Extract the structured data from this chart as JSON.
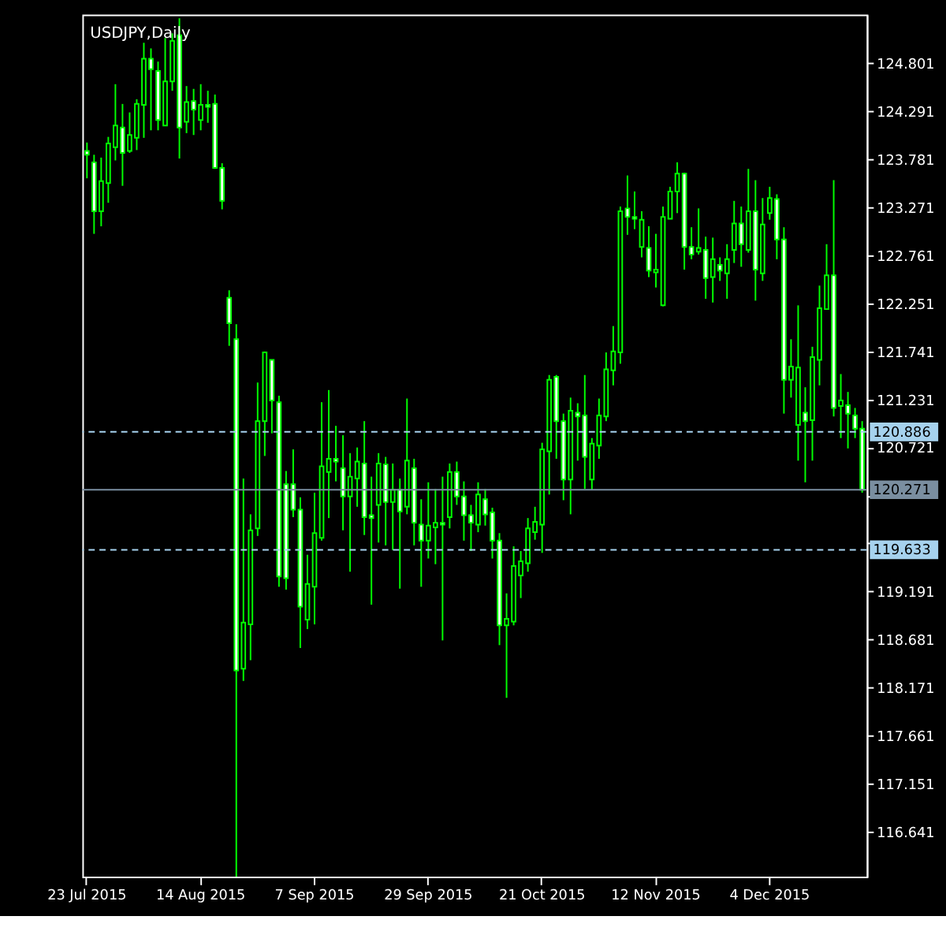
{
  "chart_data": {
    "type": "candlestick",
    "title": "USDJPY,Daily",
    "color": "#00ff00",
    "categories": [
      "23 Jul 2015",
      null,
      null,
      null,
      null,
      null,
      null,
      null,
      null,
      null,
      null,
      null,
      null,
      null,
      null,
      null,
      "14 Aug 2015",
      null,
      null,
      null,
      null,
      null,
      null,
      null,
      null,
      null,
      null,
      null,
      null,
      null,
      null,
      null,
      "7 Sep 2015",
      null,
      null,
      null,
      null,
      null,
      null,
      null,
      null,
      null,
      null,
      null,
      null,
      null,
      null,
      null,
      "29 Sep 2015",
      null,
      null,
      null,
      null,
      null,
      null,
      null,
      null,
      null,
      null,
      null,
      null,
      null,
      null,
      null,
      "21 Oct 2015",
      null,
      null,
      null,
      null,
      null,
      null,
      null,
      null,
      null,
      null,
      null,
      null,
      null,
      null,
      null,
      "12 Nov 2015",
      null,
      null,
      null,
      null,
      null,
      null,
      null,
      null,
      null,
      null,
      null,
      null,
      null,
      null,
      null,
      "4 Dec 2015",
      null,
      null,
      null,
      null,
      null,
      null,
      null,
      null,
      null,
      null,
      null,
      null,
      null
    ],
    "ohlc": [
      [
        123.87,
        123.96,
        123.58,
        123.83
      ],
      [
        123.75,
        123.83,
        122.99,
        123.23
      ],
      [
        123.23,
        123.8,
        123.07,
        123.55
      ],
      [
        123.53,
        124.02,
        123.32,
        123.95
      ],
      [
        123.91,
        124.58,
        123.77,
        124.14
      ],
      [
        124.12,
        124.37,
        123.5,
        123.85
      ],
      [
        123.87,
        124.28,
        123.85,
        124.04
      ],
      [
        124.01,
        124.42,
        123.88,
        124.37
      ],
      [
        124.36,
        125.02,
        124.01,
        124.85
      ],
      [
        124.85,
        124.96,
        124.09,
        124.74
      ],
      [
        124.72,
        124.82,
        124.09,
        124.2
      ],
      [
        124.14,
        125.07,
        124.14,
        124.61
      ],
      [
        124.61,
        125.12,
        124.51,
        125.04
      ],
      [
        125.1,
        125.28,
        123.79,
        124.12
      ],
      [
        124.18,
        124.56,
        124.06,
        124.39
      ],
      [
        124.4,
        124.53,
        124.04,
        124.31
      ],
      [
        124.2,
        124.58,
        124.09,
        124.36
      ],
      [
        124.36,
        124.51,
        124.17,
        124.34
      ],
      [
        124.37,
        124.47,
        123.68,
        123.69
      ],
      [
        123.69,
        123.74,
        123.25,
        123.34
      ],
      [
        122.31,
        122.39,
        121.8,
        122.04
      ],
      [
        121.87,
        122.03,
        116.16,
        118.35
      ],
      [
        118.37,
        120.39,
        118.24,
        118.86
      ],
      [
        118.84,
        120.01,
        118.46,
        119.84
      ],
      [
        119.86,
        121.41,
        119.78,
        121.0
      ],
      [
        121.0,
        121.74,
        120.63,
        121.73
      ],
      [
        121.65,
        121.65,
        120.87,
        121.22
      ],
      [
        121.2,
        121.27,
        119.24,
        119.35
      ],
      [
        120.33,
        120.47,
        119.21,
        119.33
      ],
      [
        120.33,
        120.7,
        119.98,
        120.06
      ],
      [
        120.06,
        120.19,
        118.59,
        119.03
      ],
      [
        118.89,
        119.58,
        118.79,
        119.27
      ],
      [
        119.24,
        120.24,
        118.84,
        119.81
      ],
      [
        119.76,
        121.2,
        119.73,
        120.52
      ],
      [
        120.46,
        121.33,
        119.97,
        120.6
      ],
      [
        120.6,
        120.95,
        120.36,
        120.57
      ],
      [
        120.5,
        120.85,
        119.84,
        120.2
      ],
      [
        120.2,
        120.66,
        119.4,
        120.41
      ],
      [
        120.39,
        120.72,
        120.09,
        120.57
      ],
      [
        120.55,
        121.0,
        119.79,
        119.98
      ],
      [
        120.0,
        120.41,
        119.05,
        119.97
      ],
      [
        120.11,
        120.66,
        119.71,
        120.55
      ],
      [
        120.54,
        120.62,
        119.68,
        120.14
      ],
      [
        120.14,
        120.55,
        119.63,
        120.27
      ],
      [
        120.27,
        120.39,
        119.22,
        120.04
      ],
      [
        120.09,
        121.24,
        120.01,
        120.58
      ],
      [
        120.5,
        120.6,
        119.68,
        119.92
      ],
      [
        119.9,
        120.17,
        119.24,
        119.73
      ],
      [
        119.73,
        120.35,
        119.54,
        119.89
      ],
      [
        119.87,
        120.28,
        119.48,
        119.92
      ],
      [
        119.92,
        120.41,
        118.67,
        119.9
      ],
      [
        119.98,
        120.55,
        119.86,
        120.46
      ],
      [
        120.46,
        120.57,
        120.11,
        120.2
      ],
      [
        120.2,
        120.36,
        119.73,
        120.0
      ],
      [
        120.0,
        120.11,
        119.62,
        119.92
      ],
      [
        119.9,
        120.35,
        119.82,
        120.22
      ],
      [
        120.17,
        120.28,
        119.89,
        120.01
      ],
      [
        120.03,
        120.08,
        119.54,
        119.73
      ],
      [
        119.73,
        119.81,
        118.62,
        118.83
      ],
      [
        118.83,
        119.17,
        118.06,
        118.9
      ],
      [
        118.87,
        119.67,
        118.83,
        119.46
      ],
      [
        119.36,
        119.62,
        119.12,
        119.51
      ],
      [
        119.49,
        119.97,
        119.4,
        119.86
      ],
      [
        119.82,
        120.09,
        119.74,
        119.93
      ],
      [
        119.9,
        120.77,
        119.6,
        120.7
      ],
      [
        120.68,
        121.49,
        120.22,
        121.44
      ],
      [
        121.47,
        121.49,
        120.6,
        121.0
      ],
      [
        121.0,
        121.08,
        120.16,
        120.38
      ],
      [
        120.38,
        121.25,
        120.01,
        121.11
      ],
      [
        121.09,
        121.19,
        120.58,
        121.05
      ],
      [
        121.06,
        121.49,
        120.28,
        120.62
      ],
      [
        120.38,
        120.82,
        120.27,
        120.76
      ],
      [
        120.74,
        121.24,
        120.6,
        121.06
      ],
      [
        121.05,
        121.73,
        121.0,
        121.55
      ],
      [
        121.54,
        122.01,
        121.38,
        121.74
      ],
      [
        121.73,
        123.28,
        121.61,
        123.23
      ],
      [
        123.26,
        123.61,
        122.98,
        123.17
      ],
      [
        123.17,
        123.44,
        123.04,
        123.15
      ],
      [
        122.85,
        123.23,
        122.74,
        123.14
      ],
      [
        122.84,
        123.07,
        122.53,
        122.6
      ],
      [
        122.58,
        122.99,
        122.42,
        122.61
      ],
      [
        122.23,
        123.28,
        122.22,
        123.17
      ],
      [
        123.15,
        123.49,
        123.15,
        123.44
      ],
      [
        123.44,
        123.75,
        123.21,
        123.63
      ],
      [
        123.63,
        123.64,
        122.61,
        122.85
      ],
      [
        122.85,
        123.06,
        122.72,
        122.77
      ],
      [
        122.8,
        123.26,
        122.77,
        122.84
      ],
      [
        122.82,
        122.96,
        122.3,
        122.52
      ],
      [
        122.53,
        122.95,
        122.26,
        122.72
      ],
      [
        122.66,
        122.74,
        122.49,
        122.6
      ],
      [
        122.57,
        122.88,
        122.3,
        122.72
      ],
      [
        122.82,
        123.34,
        122.68,
        123.1
      ],
      [
        123.1,
        123.28,
        122.64,
        122.88
      ],
      [
        122.82,
        123.68,
        122.79,
        123.23
      ],
      [
        123.23,
        123.56,
        122.28,
        122.61
      ],
      [
        122.57,
        123.37,
        122.49,
        123.09
      ],
      [
        123.21,
        123.49,
        123.14,
        123.37
      ],
      [
        123.36,
        123.41,
        122.72,
        122.93
      ],
      [
        122.93,
        123.06,
        121.08,
        121.44
      ],
      [
        121.44,
        121.87,
        121.25,
        121.58
      ],
      [
        120.96,
        122.23,
        120.58,
        121.57
      ],
      [
        121.09,
        121.36,
        120.35,
        121.0
      ],
      [
        121.01,
        121.79,
        120.58,
        121.68
      ],
      [
        121.65,
        122.44,
        121.38,
        122.2
      ],
      [
        122.19,
        122.88,
        122.19,
        122.55
      ],
      [
        122.55,
        123.56,
        121.05,
        121.14
      ],
      [
        121.16,
        121.5,
        120.82,
        121.22
      ],
      [
        121.17,
        121.31,
        120.71,
        121.08
      ],
      [
        121.06,
        121.14,
        120.82,
        120.92
      ],
      [
        120.92,
        121.0,
        120.24,
        120.27
      ]
    ],
    "ylim": [
      116.16,
      125.32
    ],
    "yticks": [
      124.801,
      124.291,
      123.781,
      123.271,
      122.761,
      122.251,
      121.741,
      121.231,
      120.721,
      {
        "value": 120.211,
        "label": null
      },
      {
        "value": 119.701,
        "label": null
      },
      119.191,
      118.681,
      118.171,
      117.661,
      117.151,
      116.641
    ],
    "ref_lines": [
      {
        "axis": "y",
        "value": 120.886,
        "label": "120.886",
        "color": "#a6d2ee",
        "line_style": "dashed"
      },
      {
        "axis": "y",
        "value": 120.271,
        "label": "120.271",
        "color": "#7a8ea0",
        "line_style": "solid"
      },
      {
        "axis": "y",
        "value": 119.633,
        "label": "119.633",
        "color": "#a6d2ee",
        "line_style": "dashed"
      }
    ],
    "grid": false
  }
}
